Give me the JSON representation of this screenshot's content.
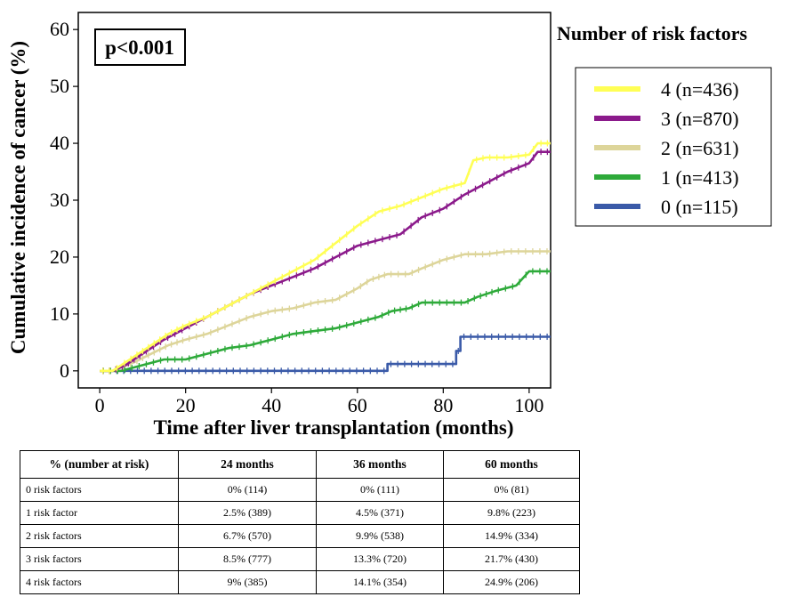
{
  "chart_data": {
    "type": "line",
    "title": "",
    "xlabel": "Time after liver transplantation (months)",
    "ylabel": "Cumulative incidence of cancer (%)",
    "xlim": [
      -5,
      105
    ],
    "ylim": [
      -3,
      63
    ],
    "xticks": [
      0,
      20,
      40,
      60,
      80,
      100
    ],
    "yticks": [
      0,
      10,
      20,
      30,
      40,
      50,
      60
    ],
    "grid": false,
    "legend_title": "Number of risk factors",
    "legend_position": "right",
    "annotation": "p<0.001",
    "series": [
      {
        "name": "4 (n=436)",
        "color": "#ffff55",
        "points": [
          [
            0,
            0
          ],
          [
            3,
            0
          ],
          [
            5,
            1
          ],
          [
            8,
            2.5
          ],
          [
            12,
            4.5
          ],
          [
            16,
            6.5
          ],
          [
            20,
            8
          ],
          [
            25,
            9.5
          ],
          [
            30,
            11.5
          ],
          [
            35,
            13.5
          ],
          [
            40,
            15.5
          ],
          [
            45,
            17.5
          ],
          [
            50,
            19.5
          ],
          [
            55,
            22.5
          ],
          [
            60,
            25.5
          ],
          [
            65,
            28
          ],
          [
            70,
            29
          ],
          [
            75,
            30.5
          ],
          [
            80,
            32
          ],
          [
            85,
            33
          ],
          [
            87,
            37
          ],
          [
            90,
            37.5
          ],
          [
            95,
            37.5
          ],
          [
            100,
            38
          ],
          [
            102,
            40
          ],
          [
            105,
            40
          ]
        ]
      },
      {
        "name": "3 (n=870)",
        "color": "#8b1a8b",
        "points": [
          [
            0,
            0
          ],
          [
            3,
            0
          ],
          [
            6,
            1
          ],
          [
            10,
            3
          ],
          [
            15,
            5.5
          ],
          [
            20,
            7.5
          ],
          [
            25,
            9.5
          ],
          [
            30,
            11.5
          ],
          [
            35,
            13.5
          ],
          [
            40,
            15
          ],
          [
            45,
            16.5
          ],
          [
            50,
            18
          ],
          [
            55,
            20
          ],
          [
            60,
            22
          ],
          [
            65,
            23
          ],
          [
            70,
            24
          ],
          [
            75,
            27
          ],
          [
            80,
            28.5
          ],
          [
            85,
            31
          ],
          [
            90,
            33
          ],
          [
            95,
            35
          ],
          [
            100,
            36.5
          ],
          [
            102,
            38.5
          ],
          [
            105,
            38.5
          ]
        ]
      },
      {
        "name": "2 (n=631)",
        "color": "#ddd59a",
        "points": [
          [
            0,
            0
          ],
          [
            3,
            0
          ],
          [
            8,
            1.5
          ],
          [
            12,
            3
          ],
          [
            16,
            4.5
          ],
          [
            20,
            5.5
          ],
          [
            25,
            6.5
          ],
          [
            30,
            8
          ],
          [
            35,
            9.5
          ],
          [
            40,
            10.5
          ],
          [
            45,
            11
          ],
          [
            50,
            12
          ],
          [
            55,
            12.5
          ],
          [
            60,
            14.5
          ],
          [
            63,
            16
          ],
          [
            67,
            17
          ],
          [
            72,
            17
          ],
          [
            75,
            18
          ],
          [
            80,
            19.5
          ],
          [
            85,
            20.5
          ],
          [
            90,
            20.5
          ],
          [
            95,
            21
          ],
          [
            105,
            21
          ]
        ]
      },
      {
        "name": "1 (n=413)",
        "color": "#2eaa3a",
        "points": [
          [
            0,
            0
          ],
          [
            5,
            0
          ],
          [
            10,
            1
          ],
          [
            15,
            2
          ],
          [
            20,
            2
          ],
          [
            25,
            3
          ],
          [
            30,
            4
          ],
          [
            35,
            4.5
          ],
          [
            40,
            5.5
          ],
          [
            45,
            6.5
          ],
          [
            50,
            7
          ],
          [
            55,
            7.5
          ],
          [
            60,
            8.5
          ],
          [
            65,
            9.5
          ],
          [
            68,
            10.5
          ],
          [
            72,
            11
          ],
          [
            75,
            12
          ],
          [
            80,
            12
          ],
          [
            85,
            12
          ],
          [
            88,
            13
          ],
          [
            92,
            14
          ],
          [
            97,
            15
          ],
          [
            100,
            17.5
          ],
          [
            105,
            17.5
          ]
        ]
      },
      {
        "name": "0 (n=115)",
        "color": "#3a5aa8",
        "points": [
          [
            0,
            0
          ],
          [
            67,
            0
          ],
          [
            67,
            1.2
          ],
          [
            83,
            1.2
          ],
          [
            83,
            3.5
          ],
          [
            84,
            3.5
          ],
          [
            84,
            6
          ],
          [
            105,
            6
          ]
        ]
      }
    ]
  },
  "table": {
    "headers": [
      "% (number at risk)",
      "24 months",
      "36 months",
      "60 months"
    ],
    "rows": [
      [
        "0 risk factors",
        "0% (114)",
        "0% (111)",
        "0% (81)"
      ],
      [
        "1 risk factor",
        "2.5% (389)",
        "4.5% (371)",
        "9.8% (223)"
      ],
      [
        "2 risk factors",
        "6.7% (570)",
        "9.9% (538)",
        "14.9% (334)"
      ],
      [
        "3 risk factors",
        "8.5% (777)",
        "13.3% (720)",
        "21.7% (430)"
      ],
      [
        "4 risk factors",
        "9% (385)",
        "14.1% (354)",
        "24.9% (206)"
      ]
    ]
  }
}
